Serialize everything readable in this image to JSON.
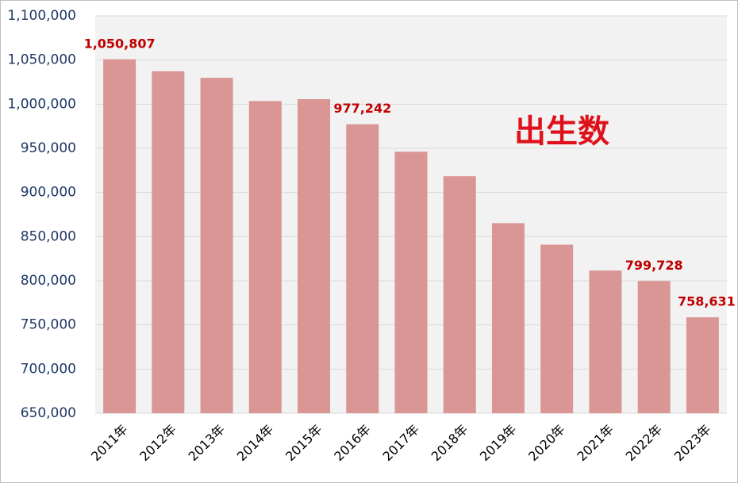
{
  "chart_data": {
    "type": "bar",
    "annotation": "出生数",
    "categories": [
      "2011年",
      "2012年",
      "2013年",
      "2014年",
      "2015年",
      "2016年",
      "2017年",
      "2018年",
      "2019年",
      "2020年",
      "2021年",
      "2022年",
      "2023年"
    ],
    "values": [
      1050807,
      1037232,
      1029817,
      1003539,
      1005677,
      977242,
      946146,
      918400,
      865239,
      840835,
      811622,
      799728,
      758631
    ],
    "value_labels": [
      "1,050,807",
      null,
      null,
      null,
      null,
      "977,242",
      null,
      null,
      null,
      null,
      null,
      "799,728",
      "758,631"
    ],
    "color": "#d99694",
    "ylim": [
      650000,
      1100000
    ],
    "yticks": [
      {
        "value": 650000,
        "label": "650,000"
      },
      {
        "value": 700000,
        "label": "700,000"
      },
      {
        "value": 750000,
        "label": "750,000"
      },
      {
        "value": 800000,
        "label": "800,000"
      },
      {
        "value": 850000,
        "label": "850,000"
      },
      {
        "value": 900000,
        "label": "900,000"
      },
      {
        "value": 950000,
        "label": "950,000"
      },
      {
        "value": 1000000,
        "label": "1,000,000"
      },
      {
        "value": 1050000,
        "label": "1,050,000"
      },
      {
        "value": 1100000,
        "label": "1,100,000"
      }
    ],
    "grid": true
  }
}
